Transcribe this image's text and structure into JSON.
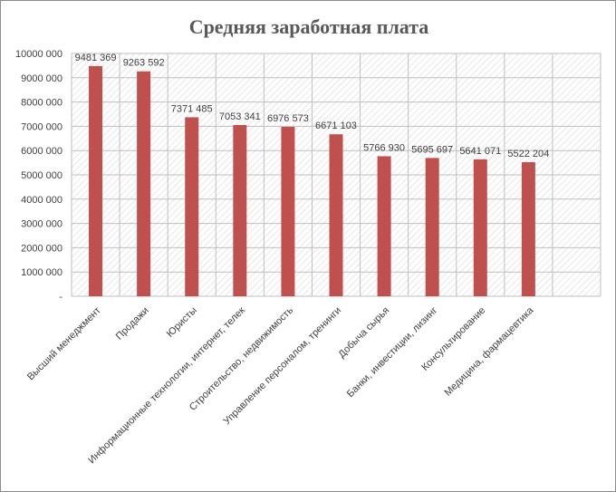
{
  "chart_data": {
    "type": "bar",
    "title": "Средняя заработная плата",
    "xlabel": "",
    "ylabel": "",
    "ylim": [
      0,
      10000000
    ],
    "y_ticks": [
      0,
      1000000,
      2000000,
      3000000,
      4000000,
      5000000,
      6000000,
      7000000,
      8000000,
      9000000,
      10000000
    ],
    "y_tick_labels": [
      "-",
      "1000 000",
      "2000 000",
      "3000 000",
      "4000 000",
      "5000 000",
      "6000 000",
      "7000 000",
      "8000 000",
      "9000 000",
      "10000 000"
    ],
    "categories": [
      "Высший менеджмент",
      "Продажи",
      "Юристы",
      "Информационные технологии, интернет, телек",
      "Строительство, недвижимость",
      "Управление персоналом, тренинги",
      "Добыча сырья",
      "Банки, инвестиции, лизинг",
      "Консультирование",
      "Медицина, фармацевтика"
    ],
    "values": [
      9481369,
      9263592,
      7371485,
      7053341,
      6976573,
      6671103,
      5766930,
      5695697,
      5641071,
      5522204
    ],
    "data_labels": [
      "9481 369",
      "9263 592",
      "7371 485",
      "7053 341",
      "6976 573",
      "6671 103",
      "5766 930",
      "5695 697",
      "5641 071",
      "5522 204"
    ],
    "bar_color": "#c0504d",
    "grid": true,
    "legend": "none"
  }
}
